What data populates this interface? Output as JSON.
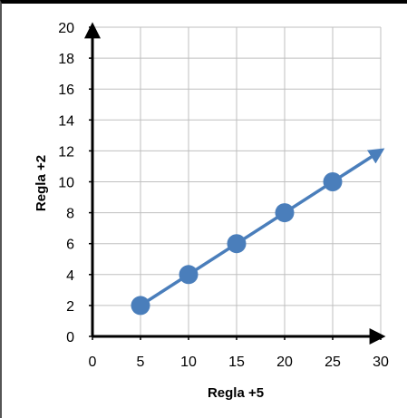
{
  "chart_data": {
    "type": "line",
    "xlabel": "Regla +5",
    "ylabel": "Regla +2",
    "xlim": [
      0,
      30
    ],
    "ylim": [
      0,
      20
    ],
    "xticks": [
      0,
      5,
      10,
      15,
      20,
      25,
      30
    ],
    "yticks": [
      0,
      2,
      4,
      6,
      8,
      10,
      12,
      14,
      16,
      18,
      20
    ],
    "grid": true,
    "series": [
      {
        "x": [
          5,
          10,
          15,
          20,
          25
        ],
        "y": [
          2,
          4,
          6,
          8,
          10
        ],
        "color": "#4A7EBB",
        "line_extends_to": [
          30,
          12
        ],
        "arrow_end": true
      }
    ],
    "axis_color": "#000000",
    "grid_color": "#BFBFBF"
  }
}
